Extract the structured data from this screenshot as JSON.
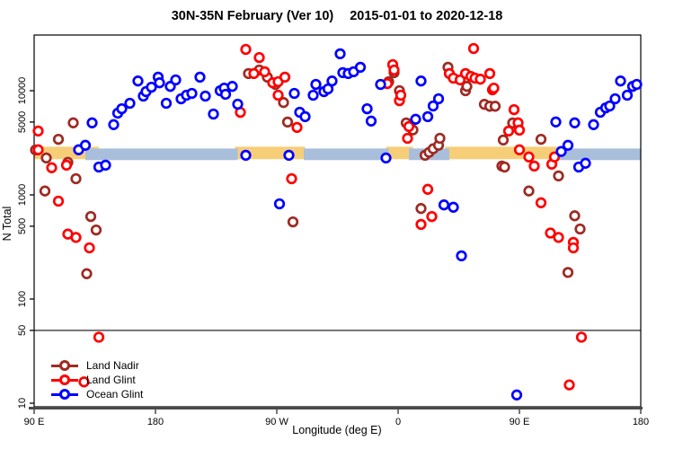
{
  "title": {
    "main": "30N-35N February (Ver 10)",
    "dates": "2015-01-01 to 2020-12-18"
  },
  "legend": {
    "items": [
      {
        "label": "Land Nadir",
        "color": "#9E2B23"
      },
      {
        "label": "Land Glint",
        "color": "#FF0000"
      },
      {
        "label": "Ocean Glint",
        "color": "#0000FF"
      }
    ]
  },
  "chart_data": {
    "type": "scatter",
    "title": "30N-35N February (Ver 10)  2015-01-01 to 2020-12-18",
    "xlabel": "Longitude (deg E)",
    "ylabel": "N Total",
    "grid": "off",
    "legend_position": "bottom-left",
    "x_axis": {
      "unit": "deg E",
      "wraps_globe": true,
      "range_deg": [
        90,
        540
      ],
      "ticks": [
        {
          "deg": 90,
          "label": "90 E"
        },
        {
          "deg": 180,
          "label": "180"
        },
        {
          "deg": 270,
          "label": "90 W"
        },
        {
          "deg": 360,
          "label": "0"
        },
        {
          "deg": 450,
          "label": "90 E"
        },
        {
          "deg": 540,
          "label": "180"
        }
      ]
    },
    "y_axis": {
      "scale": "log",
      "range": [
        9,
        34000
      ],
      "hline_at": 50,
      "ticks": [
        {
          "v": 10,
          "label": "10"
        },
        {
          "v": 50,
          "label": "50"
        },
        {
          "v": 100,
          "label": "100"
        },
        {
          "v": 500,
          "label": "500"
        },
        {
          "v": 1000,
          "label": "1000"
        },
        {
          "v": 5000,
          "label": "5000"
        },
        {
          "v": 10000,
          "label": "10000"
        }
      ]
    },
    "bands": {
      "value_range": [
        2200,
        2900
      ],
      "land_color": "#F6CE78",
      "ocean_color": "#A9BEDB",
      "land_segments_deg": [
        [
          90,
          138
        ],
        [
          239,
          291
        ],
        [
          351,
          371
        ],
        [
          395,
          481
        ]
      ],
      "ocean_segments_deg": [
        [
          128,
          241
        ],
        [
          290,
          353
        ],
        [
          368,
          398
        ],
        [
          478,
          540
        ]
      ]
    },
    "series": [
      {
        "name": "Land Nadir",
        "color": "#9E2B23",
        "points": [
          [
            91,
            2700
          ],
          [
            99,
            2260
          ],
          [
            98,
            1090
          ],
          [
            108,
            3420
          ],
          [
            115,
            2050
          ],
          [
            119,
            4910
          ],
          [
            121,
            1430
          ],
          [
            129,
            175
          ],
          [
            132,
            620
          ],
          [
            136,
            460
          ],
          [
            249,
            14600
          ],
          [
            257,
            15800
          ],
          [
            263,
            13500
          ],
          [
            269,
            11500
          ],
          [
            275,
            7700
          ],
          [
            278,
            5000
          ],
          [
            282,
            550
          ],
          [
            353,
            12200
          ],
          [
            357,
            14900
          ],
          [
            361,
            10000
          ],
          [
            366,
            4900
          ],
          [
            371,
            4200
          ],
          [
            377,
            740
          ],
          [
            380,
            2400
          ],
          [
            383,
            2560
          ],
          [
            386,
            2770
          ],
          [
            390,
            2990
          ],
          [
            391,
            3490
          ],
          [
            397,
            16800
          ],
          [
            410,
            10000
          ],
          [
            411,
            11000
          ],
          [
            424,
            7400
          ],
          [
            428,
            7100
          ],
          [
            432,
            7100
          ],
          [
            437,
            1890
          ],
          [
            438,
            3360
          ],
          [
            439,
            1850
          ],
          [
            445,
            4900
          ],
          [
            457,
            1090
          ],
          [
            466,
            3420
          ],
          [
            479,
            1520
          ],
          [
            486,
            180
          ],
          [
            491,
            630
          ],
          [
            495,
            470
          ]
        ]
      },
      {
        "name": "Land Glint",
        "color": "#FF0000",
        "points": [
          [
            93,
            4100
          ],
          [
            93,
            2710
          ],
          [
            103,
            1820
          ],
          [
            108,
            870
          ],
          [
            114,
            1930
          ],
          [
            115,
            420
          ],
          [
            121,
            390
          ],
          [
            127,
            16
          ],
          [
            131,
            310
          ],
          [
            138,
            43
          ],
          [
            243,
            6200
          ],
          [
            247,
            24900
          ],
          [
            253,
            14600
          ],
          [
            257,
            20800
          ],
          [
            261,
            15200
          ],
          [
            267,
            11900
          ],
          [
            271,
            12200
          ],
          [
            271,
            9050
          ],
          [
            276,
            13500
          ],
          [
            281,
            1430
          ],
          [
            285,
            4440
          ],
          [
            352,
            11700
          ],
          [
            356,
            17800
          ],
          [
            357,
            15800
          ],
          [
            361,
            8030
          ],
          [
            362,
            9050
          ],
          [
            367,
            3490
          ],
          [
            368,
            4530
          ],
          [
            377,
            520
          ],
          [
            382,
            1130
          ],
          [
            385,
            620
          ],
          [
            398,
            14600
          ],
          [
            401,
            13200
          ],
          [
            406,
            12700
          ],
          [
            410,
            14600
          ],
          [
            414,
            13700
          ],
          [
            416,
            25400
          ],
          [
            417,
            13200
          ],
          [
            421,
            12900
          ],
          [
            428,
            14600
          ],
          [
            430,
            10200
          ],
          [
            431,
            10600
          ],
          [
            442,
            4100
          ],
          [
            446,
            6580
          ],
          [
            449,
            4910
          ],
          [
            450,
            4180
          ],
          [
            450,
            2710
          ],
          [
            457,
            2310
          ],
          [
            461,
            1890
          ],
          [
            466,
            840
          ],
          [
            473,
            430
          ],
          [
            474,
            1970
          ],
          [
            476,
            2310
          ],
          [
            479,
            390
          ],
          [
            487,
            15
          ],
          [
            490,
            350
          ],
          [
            490,
            310
          ],
          [
            496,
            43
          ]
        ]
      },
      {
        "name": "Ocean Glint",
        "color": "#0000FF",
        "points": [
          [
            123,
            2710
          ],
          [
            128,
            2990
          ],
          [
            133,
            4910
          ],
          [
            138,
            1850
          ],
          [
            143,
            1930
          ],
          [
            149,
            4720
          ],
          [
            152,
            6090
          ],
          [
            155,
            6710
          ],
          [
            161,
            7570
          ],
          [
            167,
            12400
          ],
          [
            171,
            8870
          ],
          [
            173,
            9800
          ],
          [
            177,
            10800
          ],
          [
            182,
            13500
          ],
          [
            183,
            11900
          ],
          [
            188,
            7570
          ],
          [
            191,
            11000
          ],
          [
            195,
            12700
          ],
          [
            199,
            8360
          ],
          [
            203,
            9050
          ],
          [
            207,
            9420
          ],
          [
            213,
            13500
          ],
          [
            217,
            8870
          ],
          [
            223,
            5970
          ],
          [
            228,
            10000
          ],
          [
            231,
            10600
          ],
          [
            232,
            9230
          ],
          [
            237,
            11000
          ],
          [
            241,
            7420
          ],
          [
            247,
            2400
          ],
          [
            272,
            820
          ],
          [
            279,
            2400
          ],
          [
            283,
            9420
          ],
          [
            287,
            6210
          ],
          [
            291,
            5640
          ],
          [
            297,
            9050
          ],
          [
            299,
            11500
          ],
          [
            305,
            9800
          ],
          [
            308,
            10400
          ],
          [
            311,
            12400
          ],
          [
            317,
            22600
          ],
          [
            319,
            14900
          ],
          [
            323,
            14600
          ],
          [
            327,
            15200
          ],
          [
            332,
            16800
          ],
          [
            337,
            6710
          ],
          [
            340,
            5110
          ],
          [
            347,
            11500
          ],
          [
            351,
            2260
          ],
          [
            373,
            5320
          ],
          [
            377,
            12400
          ],
          [
            382,
            5640
          ],
          [
            386,
            7130
          ],
          [
            390,
            8360
          ],
          [
            394,
            800
          ],
          [
            401,
            760
          ],
          [
            407,
            260
          ],
          [
            448,
            12
          ],
          [
            477,
            5010
          ],
          [
            481,
            2610
          ],
          [
            486,
            2990
          ],
          [
            491,
            4910
          ],
          [
            494,
            1850
          ],
          [
            499,
            2010
          ],
          [
            505,
            4720
          ],
          [
            510,
            6210
          ],
          [
            514,
            6850
          ],
          [
            517,
            7130
          ],
          [
            521,
            8360
          ],
          [
            525,
            12400
          ],
          [
            530,
            9050
          ],
          [
            534,
            11000
          ],
          [
            537,
            11500
          ]
        ]
      }
    ]
  }
}
